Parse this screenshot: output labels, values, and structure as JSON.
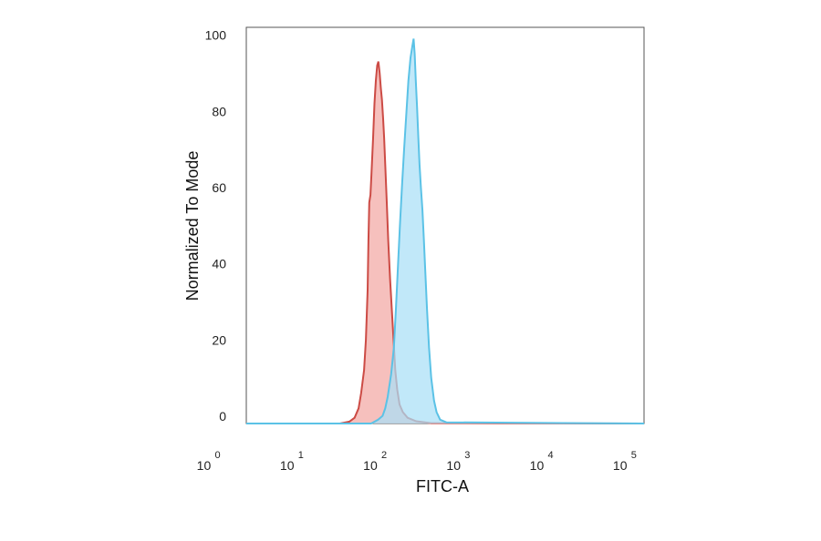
{
  "chart_data": {
    "type": "area",
    "title": "",
    "xlabel": "FITC-A",
    "ylabel": "Normalized To Mode",
    "x_scale": "log10",
    "xlim": [
      3,
      180000
    ],
    "ylim": [
      0,
      104
    ],
    "x_ticks": [
      {
        "base": "10",
        "exp": "0",
        "value": 1
      },
      {
        "base": "10",
        "exp": "1",
        "value": 10
      },
      {
        "base": "10",
        "exp": "2",
        "value": 100
      },
      {
        "base": "10",
        "exp": "3",
        "value": 1000
      },
      {
        "base": "10",
        "exp": "4",
        "value": 10000
      },
      {
        "base": "10",
        "exp": "5",
        "value": 100000
      }
    ],
    "y_ticks": [
      "0",
      "20",
      "40",
      "60",
      "80",
      "100"
    ],
    "grid": false,
    "legend": "none",
    "series": [
      {
        "color_line": "#cc4b45",
        "color_fill": "#f2a7a3",
        "points": [
          [
            3,
            0
          ],
          [
            40,
            0
          ],
          [
            52,
            0.5
          ],
          [
            60,
            1.5
          ],
          [
            67,
            4
          ],
          [
            72,
            8
          ],
          [
            78,
            14
          ],
          [
            82,
            22
          ],
          [
            86,
            35
          ],
          [
            88,
            48
          ],
          [
            90,
            58
          ],
          [
            93,
            60
          ],
          [
            96,
            66
          ],
          [
            100,
            75
          ],
          [
            104,
            84
          ],
          [
            108,
            90
          ],
          [
            112,
            94
          ],
          [
            116,
            95
          ],
          [
            120,
            92
          ],
          [
            124,
            88
          ],
          [
            128,
            85
          ],
          [
            132,
            80
          ],
          [
            136,
            75
          ],
          [
            140,
            68
          ],
          [
            146,
            58
          ],
          [
            152,
            48
          ],
          [
            160,
            38
          ],
          [
            168,
            30
          ],
          [
            176,
            22
          ],
          [
            185,
            14
          ],
          [
            195,
            9
          ],
          [
            208,
            5
          ],
          [
            228,
            3
          ],
          [
            260,
            1.5
          ],
          [
            330,
            0.6
          ],
          [
            500,
            0.1
          ],
          [
            180000,
            0
          ]
        ]
      },
      {
        "color_line": "#5bc2e6",
        "color_fill": "#a9dff6",
        "points": [
          [
            3,
            0
          ],
          [
            95,
            0
          ],
          [
            115,
            1
          ],
          [
            130,
            2
          ],
          [
            140,
            4
          ],
          [
            150,
            7
          ],
          [
            165,
            13
          ],
          [
            178,
            20
          ],
          [
            188,
            30
          ],
          [
            198,
            40
          ],
          [
            210,
            52
          ],
          [
            222,
            62
          ],
          [
            236,
            72
          ],
          [
            252,
            82
          ],
          [
            266,
            90
          ],
          [
            282,
            96
          ],
          [
            296,
            99
          ],
          [
            307,
            101
          ],
          [
            316,
            97
          ],
          [
            326,
            90
          ],
          [
            338,
            83
          ],
          [
            350,
            75
          ],
          [
            362,
            68
          ],
          [
            376,
            62
          ],
          [
            392,
            56
          ],
          [
            408,
            48
          ],
          [
            424,
            40
          ],
          [
            445,
            30
          ],
          [
            470,
            20
          ],
          [
            500,
            12
          ],
          [
            540,
            6
          ],
          [
            580,
            3
          ],
          [
            640,
            1
          ],
          [
            760,
            0.3
          ],
          [
            180000,
            0
          ]
        ]
      }
    ]
  }
}
